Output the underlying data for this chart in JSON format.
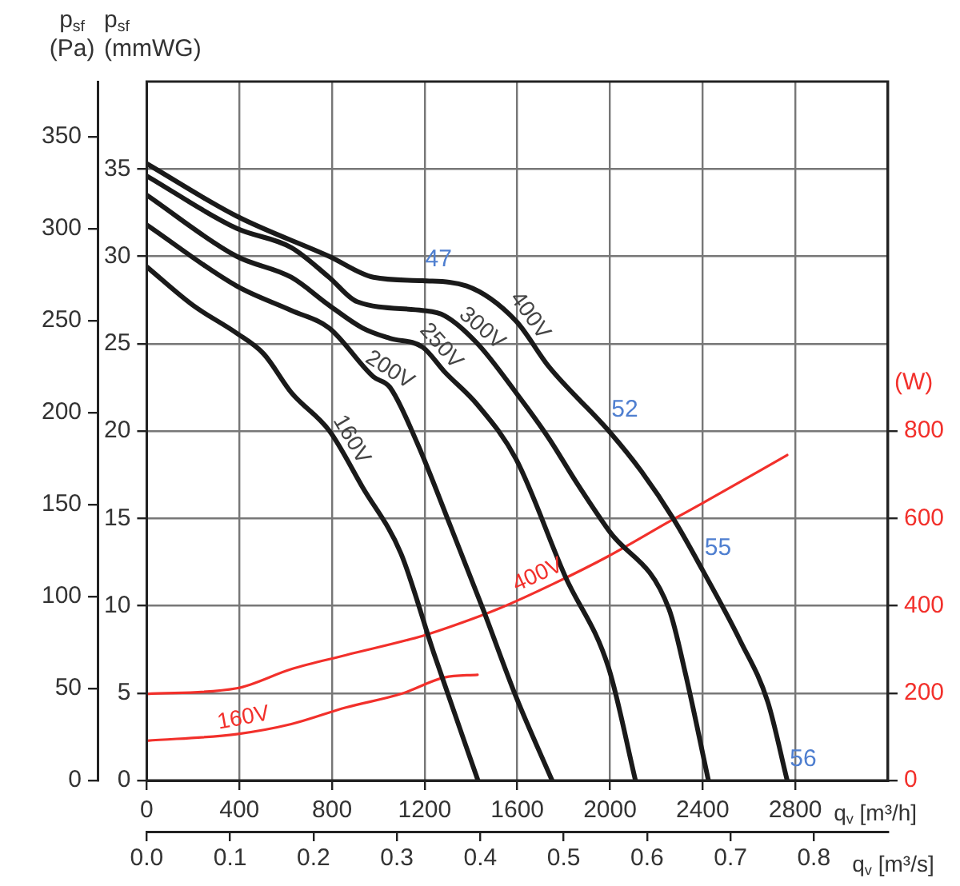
{
  "chart_data": {
    "type": "line",
    "xlabel": "q$_{v}$ [m³/h]",
    "x2label": "q$_{v}$ [m³/s]",
    "ylabel": "p$_{sf}$ (Pa)",
    "y2label": "p$_{sf}$ (mmWG)",
    "y3label": "(W)",
    "xlim": [
      0,
      3200
    ],
    "xticks": [
      0,
      400,
      800,
      1200,
      1600,
      2000,
      2400,
      2800
    ],
    "x2lim": [
      0,
      0.8889
    ],
    "x2ticks": [
      {
        "value": 0,
        "label": "0.0"
      },
      0.1,
      0.2,
      0.3,
      0.4,
      0.5,
      0.6,
      0.7,
      0.8
    ],
    "ylim": [
      0,
      380
    ],
    "yticks": [
      0,
      50,
      100,
      150,
      200,
      250,
      300,
      350
    ],
    "y2lim": [
      0,
      40
    ],
    "y2ticks": [
      0,
      5,
      10,
      15,
      20,
      25,
      30,
      35
    ],
    "y3lim": [
      0,
      1600
    ],
    "y3ticks": [
      0,
      200,
      400,
      600,
      800
    ],
    "grid": true,
    "series": [
      {
        "name": "400V",
        "color": "#1a1a1a",
        "axis": "y2",
        "x": [
          0,
          388,
          787,
          979,
          1191,
          1381,
          1594,
          1735,
          1995,
          2135,
          2277,
          2397,
          2562,
          2681,
          2765
        ],
        "values": [
          35.3,
          32.3,
          30.0,
          28.8,
          28.6,
          28.3,
          26.3,
          23.7,
          20.0,
          17.7,
          14.9,
          12.1,
          8.0,
          4.5,
          0
        ]
      },
      {
        "name": "300V",
        "color": "#1a1a1a",
        "axis": "y2",
        "x": [
          0,
          388,
          624,
          787,
          908,
          1191,
          1286,
          1428,
          1594,
          1735,
          1853,
          1995,
          2255,
          2326,
          2425
        ],
        "values": [
          34.6,
          31.6,
          30.5,
          28.8,
          27.4,
          26.9,
          26.6,
          25.0,
          22.2,
          19.6,
          17.1,
          14.3,
          9.8,
          6.1,
          0
        ]
      },
      {
        "name": "250V",
        "color": "#1a1a1a",
        "axis": "y2",
        "x": [
          0,
          388,
          624,
          787,
          931,
          1050,
          1191,
          1285,
          1428,
          1594,
          1806,
          1995,
          2110
        ],
        "values": [
          33.5,
          30.0,
          28.8,
          27.2,
          25.9,
          25.3,
          24.8,
          23.4,
          21.5,
          18.4,
          11.7,
          6.4,
          0
        ]
      },
      {
        "name": "200V",
        "color": "#1a1a1a",
        "axis": "y2",
        "x": [
          0,
          388,
          624,
          787,
          979,
          1050,
          1168,
          1310,
          1452,
          1594,
          1750
        ],
        "values": [
          31.8,
          28.3,
          26.9,
          25.9,
          23.1,
          22.5,
          19.3,
          14.6,
          9.8,
          4.8,
          0
        ]
      },
      {
        "name": "160V",
        "color": "#1a1a1a",
        "axis": "y2",
        "x": [
          0,
          199,
          388,
          506,
          624,
          789,
          931,
          1097,
          1239,
          1430
        ],
        "values": [
          29.4,
          27.2,
          25.6,
          24.4,
          22.2,
          20.0,
          16.8,
          13.0,
          7.3,
          0
        ]
      },
      {
        "name": "400V",
        "color": "#f2302b",
        "axis": "y3",
        "x": [
          0,
          388,
          624,
          860,
          1191,
          1333,
          1523,
          1759,
          1995,
          2267,
          2397,
          2765
        ],
        "values": [
          198,
          211,
          255,
          287,
          331,
          356,
          394,
          451,
          514,
          596,
          634,
          745
        ]
      },
      {
        "name": "160V",
        "color": "#f2302b",
        "axis": "y3",
        "x": [
          0,
          388,
          624,
          860,
          1097,
          1286,
          1428
        ],
        "values": [
          91,
          106,
          129,
          167,
          198,
          236,
          242
        ]
      }
    ],
    "annotations": [
      {
        "text": "47",
        "x": 1191,
        "y": 272
      },
      {
        "text": "52",
        "x": 1995,
        "y": 190
      },
      {
        "text": "55",
        "x": 2397,
        "y": 115
      },
      {
        "text": "56",
        "x": 2765,
        "y": 0
      }
    ]
  }
}
